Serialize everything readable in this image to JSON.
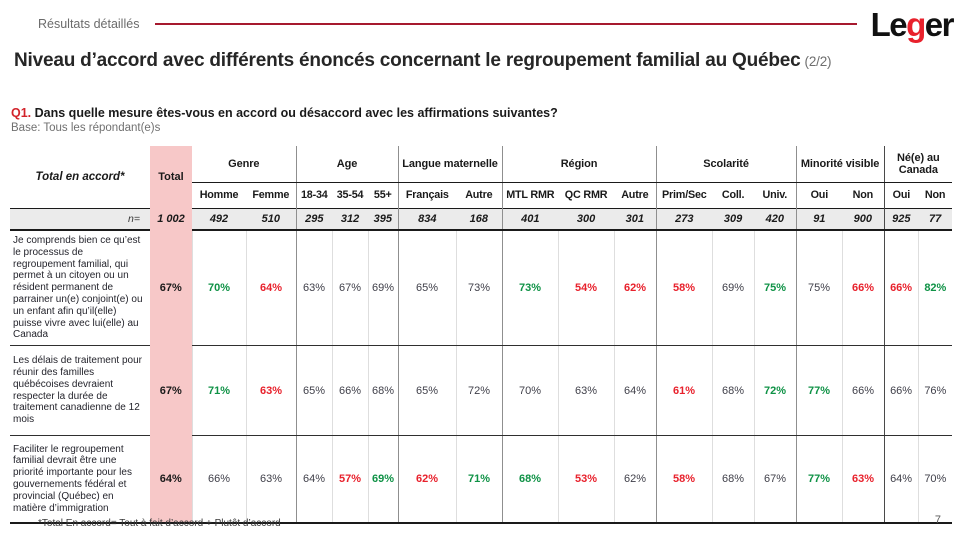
{
  "header": {
    "eyebrow": "Résultats détaillés",
    "logo": {
      "part1": "Le",
      "part2": "g",
      "part3": "er"
    }
  },
  "title": {
    "text": "Niveau d’accord avec différents énoncés concernant le regroupement familial au Québec",
    "suffix": "(2/2)"
  },
  "question": {
    "label": "Q1.",
    "text": "Dans quelle mesure êtes-vous en accord ou désaccord avec les affirmations suivantes?",
    "base": "Base: Tous les répondant(e)s"
  },
  "table": {
    "row_header": "Total en accord*",
    "total_label": "Total",
    "n_label": "n=",
    "groups": [
      {
        "label": "Genre",
        "cols": [
          "Homme",
          "Femme"
        ]
      },
      {
        "label": "Age",
        "cols": [
          "18-34",
          "35-54",
          "55+"
        ]
      },
      {
        "label": "Langue maternelle",
        "cols": [
          "Français",
          "Autre"
        ]
      },
      {
        "label": "Région",
        "cols": [
          "MTL RMR",
          "QC RMR",
          "Autre"
        ]
      },
      {
        "label": "Scolarité",
        "cols": [
          "Prim/Sec",
          "Coll.",
          "Univ."
        ]
      },
      {
        "label": "Minorité visible",
        "cols": [
          "Oui",
          "Non"
        ]
      },
      {
        "label": "Né(e) au Canada",
        "cols": [
          "Oui",
          "Non"
        ]
      }
    ],
    "n_values": [
      "1 002",
      "492",
      "510",
      "295",
      "312",
      "395",
      "834",
      "168",
      "401",
      "300",
      "301",
      "273",
      "309",
      "420",
      "91",
      "900",
      "925",
      "77"
    ],
    "rows": [
      {
        "statement": "Je comprends bien ce qu’est le processus de regroupement familial, qui permet à un citoyen ou un résident permanent de parrainer un(e) conjoint(e) ou un enfant afin qu’il(elle) puisse vivre avec lui(elle) au Canada",
        "values": [
          {
            "v": "67%",
            "c": "total"
          },
          {
            "v": "70%",
            "c": "green"
          },
          {
            "v": "64%",
            "c": "red"
          },
          {
            "v": "63%",
            "c": "plain"
          },
          {
            "v": "67%",
            "c": "plain"
          },
          {
            "v": "69%",
            "c": "plain"
          },
          {
            "v": "65%",
            "c": "plain"
          },
          {
            "v": "73%",
            "c": "plain"
          },
          {
            "v": "73%",
            "c": "green"
          },
          {
            "v": "54%",
            "c": "red"
          },
          {
            "v": "62%",
            "c": "red"
          },
          {
            "v": "58%",
            "c": "red"
          },
          {
            "v": "69%",
            "c": "plain"
          },
          {
            "v": "75%",
            "c": "green"
          },
          {
            "v": "75%",
            "c": "plain"
          },
          {
            "v": "66%",
            "c": "red"
          },
          {
            "v": "66%",
            "c": "red"
          },
          {
            "v": "82%",
            "c": "green"
          }
        ]
      },
      {
        "statement": "Les délais de traitement pour réunir des familles québécoises devraient respecter la durée de traitement canadienne de 12 mois",
        "values": [
          {
            "v": "67%",
            "c": "total"
          },
          {
            "v": "71%",
            "c": "green"
          },
          {
            "v": "63%",
            "c": "red"
          },
          {
            "v": "65%",
            "c": "plain"
          },
          {
            "v": "66%",
            "c": "plain"
          },
          {
            "v": "68%",
            "c": "plain"
          },
          {
            "v": "65%",
            "c": "plain"
          },
          {
            "v": "72%",
            "c": "plain"
          },
          {
            "v": "70%",
            "c": "plain"
          },
          {
            "v": "63%",
            "c": "plain"
          },
          {
            "v": "64%",
            "c": "plain"
          },
          {
            "v": "61%",
            "c": "red"
          },
          {
            "v": "68%",
            "c": "plain"
          },
          {
            "v": "72%",
            "c": "green"
          },
          {
            "v": "77%",
            "c": "green"
          },
          {
            "v": "66%",
            "c": "plain"
          },
          {
            "v": "66%",
            "c": "plain"
          },
          {
            "v": "76%",
            "c": "plain"
          }
        ]
      },
      {
        "statement": "Faciliter le regroupement familial devrait être une priorité importante pour les gouvernements fédéral et provincial (Québec) en matière d’immigration",
        "values": [
          {
            "v": "64%",
            "c": "total"
          },
          {
            "v": "66%",
            "c": "plain"
          },
          {
            "v": "63%",
            "c": "plain"
          },
          {
            "v": "64%",
            "c": "plain"
          },
          {
            "v": "57%",
            "c": "red"
          },
          {
            "v": "69%",
            "c": "green"
          },
          {
            "v": "62%",
            "c": "red"
          },
          {
            "v": "71%",
            "c": "green"
          },
          {
            "v": "68%",
            "c": "green"
          },
          {
            "v": "53%",
            "c": "red"
          },
          {
            "v": "62%",
            "c": "plain"
          },
          {
            "v": "58%",
            "c": "red"
          },
          {
            "v": "68%",
            "c": "plain"
          },
          {
            "v": "67%",
            "c": "plain"
          },
          {
            "v": "77%",
            "c": "green"
          },
          {
            "v": "63%",
            "c": "red"
          },
          {
            "v": "64%",
            "c": "plain"
          },
          {
            "v": "70%",
            "c": "plain"
          }
        ]
      }
    ]
  },
  "footer": {
    "note": "*Total En accord= Tout à fait d’accord + Plutôt d’accord",
    "page": "7"
  },
  "colors": {
    "accent_red": "#a6192e",
    "question_red": "#d2232a",
    "positive_green": "#0f9246",
    "negative_red": "#e8212c",
    "total_column_pink": "#f7c8c8",
    "n_row_gray": "#ebebeb"
  }
}
